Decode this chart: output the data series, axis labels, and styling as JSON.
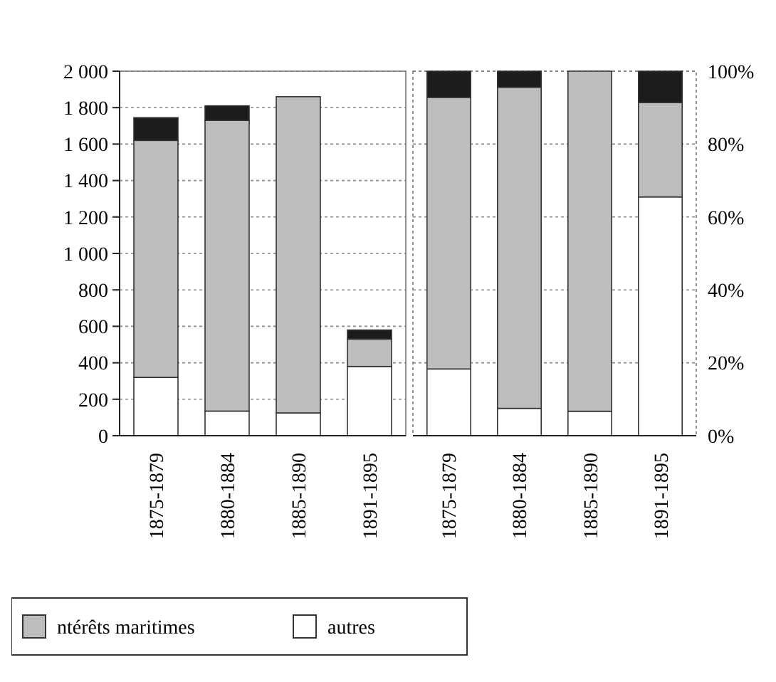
{
  "chart_data": [
    {
      "type": "bar",
      "stacked": true,
      "categories": [
        "1875-1879",
        "1880-1884",
        "1885-1890",
        "1891-1895"
      ],
      "series": [
        {
          "name": "autres",
          "color": "#ffffff",
          "values": [
            320,
            135,
            125,
            380
          ]
        },
        {
          "name": "ntérêts maritimes",
          "color": "#bdbdbd",
          "values": [
            1300,
            1595,
            1735,
            150
          ]
        },
        {
          "color": "#1c1c1c",
          "values": [
            125,
            80,
            0,
            50
          ]
        }
      ],
      "ylim": [
        0,
        2000
      ],
      "yticks": [
        0,
        200,
        400,
        600,
        800,
        {
          "value": 1000,
          "label": "1 000"
        },
        {
          "value": 1200,
          "label": "1 200"
        },
        {
          "value": 1400,
          "label": "1 400"
        },
        {
          "value": 1600,
          "label": "1 600"
        },
        {
          "value": 1800,
          "label": "1 800"
        },
        {
          "value": 2000,
          "label": "2 000"
        }
      ],
      "grid": "y",
      "legend": "bottom"
    },
    {
      "type": "bar",
      "stacked": true,
      "categories": [
        "1875-1879",
        "1880-1884",
        "1885-1890",
        "1891-1895"
      ],
      "series": [
        {
          "color": "#ffffff",
          "values": [
            18.3,
            7.5,
            6.7,
            65.5
          ]
        },
        {
          "color": "#bdbdbd",
          "values": [
            74.5,
            88.1,
            93.3,
            25.9
          ]
        },
        {
          "color": "#1c1c1c",
          "values": [
            7.2,
            4.4,
            0,
            8.6
          ]
        }
      ],
      "ylim": [
        0,
        100
      ],
      "yticks": [
        {
          "value": 0,
          "label": "0%"
        },
        {
          "value": 20,
          "label": "20%"
        },
        {
          "value": 40,
          "label": "40%"
        },
        {
          "value": 60,
          "label": "60%"
        },
        {
          "value": 80,
          "label": "80%"
        },
        {
          "value": 100,
          "label": "100%"
        }
      ],
      "grid": "y"
    }
  ]
}
